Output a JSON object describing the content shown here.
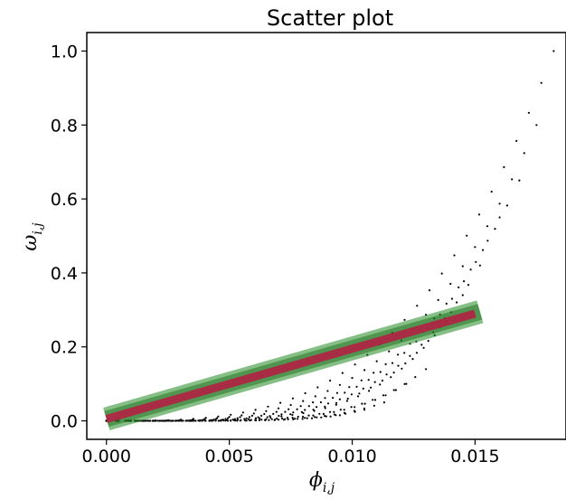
{
  "chart_data": {
    "type": "scatter",
    "title": "Scatter plot",
    "xlabel": "ϕ",
    "xlabel_sub": "i,j",
    "ylabel": "ω",
    "ylabel_sub": "i,j",
    "xlim": [
      -0.0008,
      0.0187
    ],
    "ylim": [
      -0.05,
      1.05
    ],
    "xticks": [
      0.0,
      0.005,
      0.01,
      0.015
    ],
    "xtick_labels": [
      "0.000",
      "0.005",
      "0.010",
      "0.015"
    ],
    "yticks": [
      0.0,
      0.2,
      0.4,
      0.6,
      0.8,
      1.0
    ],
    "ytick_labels": [
      "0.0",
      "0.2",
      "0.4",
      "0.6",
      "0.8",
      "1.0"
    ],
    "grid": false,
    "series": [
      {
        "kind": "points",
        "color": "#000000",
        "curves": [
          {
            "x_end": 0.0182,
            "y_end": 1.0
          },
          {
            "x_end": 0.0175,
            "y_end": 0.8
          },
          {
            "x_end": 0.0168,
            "y_end": 0.65
          },
          {
            "x_end": 0.016,
            "y_end": 0.55
          },
          {
            "x_end": 0.0152,
            "y_end": 0.42
          },
          {
            "x_end": 0.0145,
            "y_end": 0.34
          },
          {
            "x_end": 0.0138,
            "y_end": 0.27
          },
          {
            "x_end": 0.013,
            "y_end": 0.14
          },
          {
            "x_end": 0.0122,
            "y_end": 0.1
          },
          {
            "x_end": 0.0113,
            "y_end": 0.05
          },
          {
            "x_end": 0.0105,
            "y_end": 0.03
          },
          {
            "x_end": 0.0095,
            "y_end": 0.015
          }
        ]
      },
      {
        "kind": "band",
        "color": "#228B22",
        "x_start": 0.0,
        "y_start": 0.005,
        "x_end": 0.0152,
        "y_end": 0.295
      },
      {
        "kind": "line",
        "color": "#B22044",
        "x_start": 0.0,
        "y_start": 0.005,
        "x_end": 0.015,
        "y_end": 0.29
      }
    ]
  }
}
